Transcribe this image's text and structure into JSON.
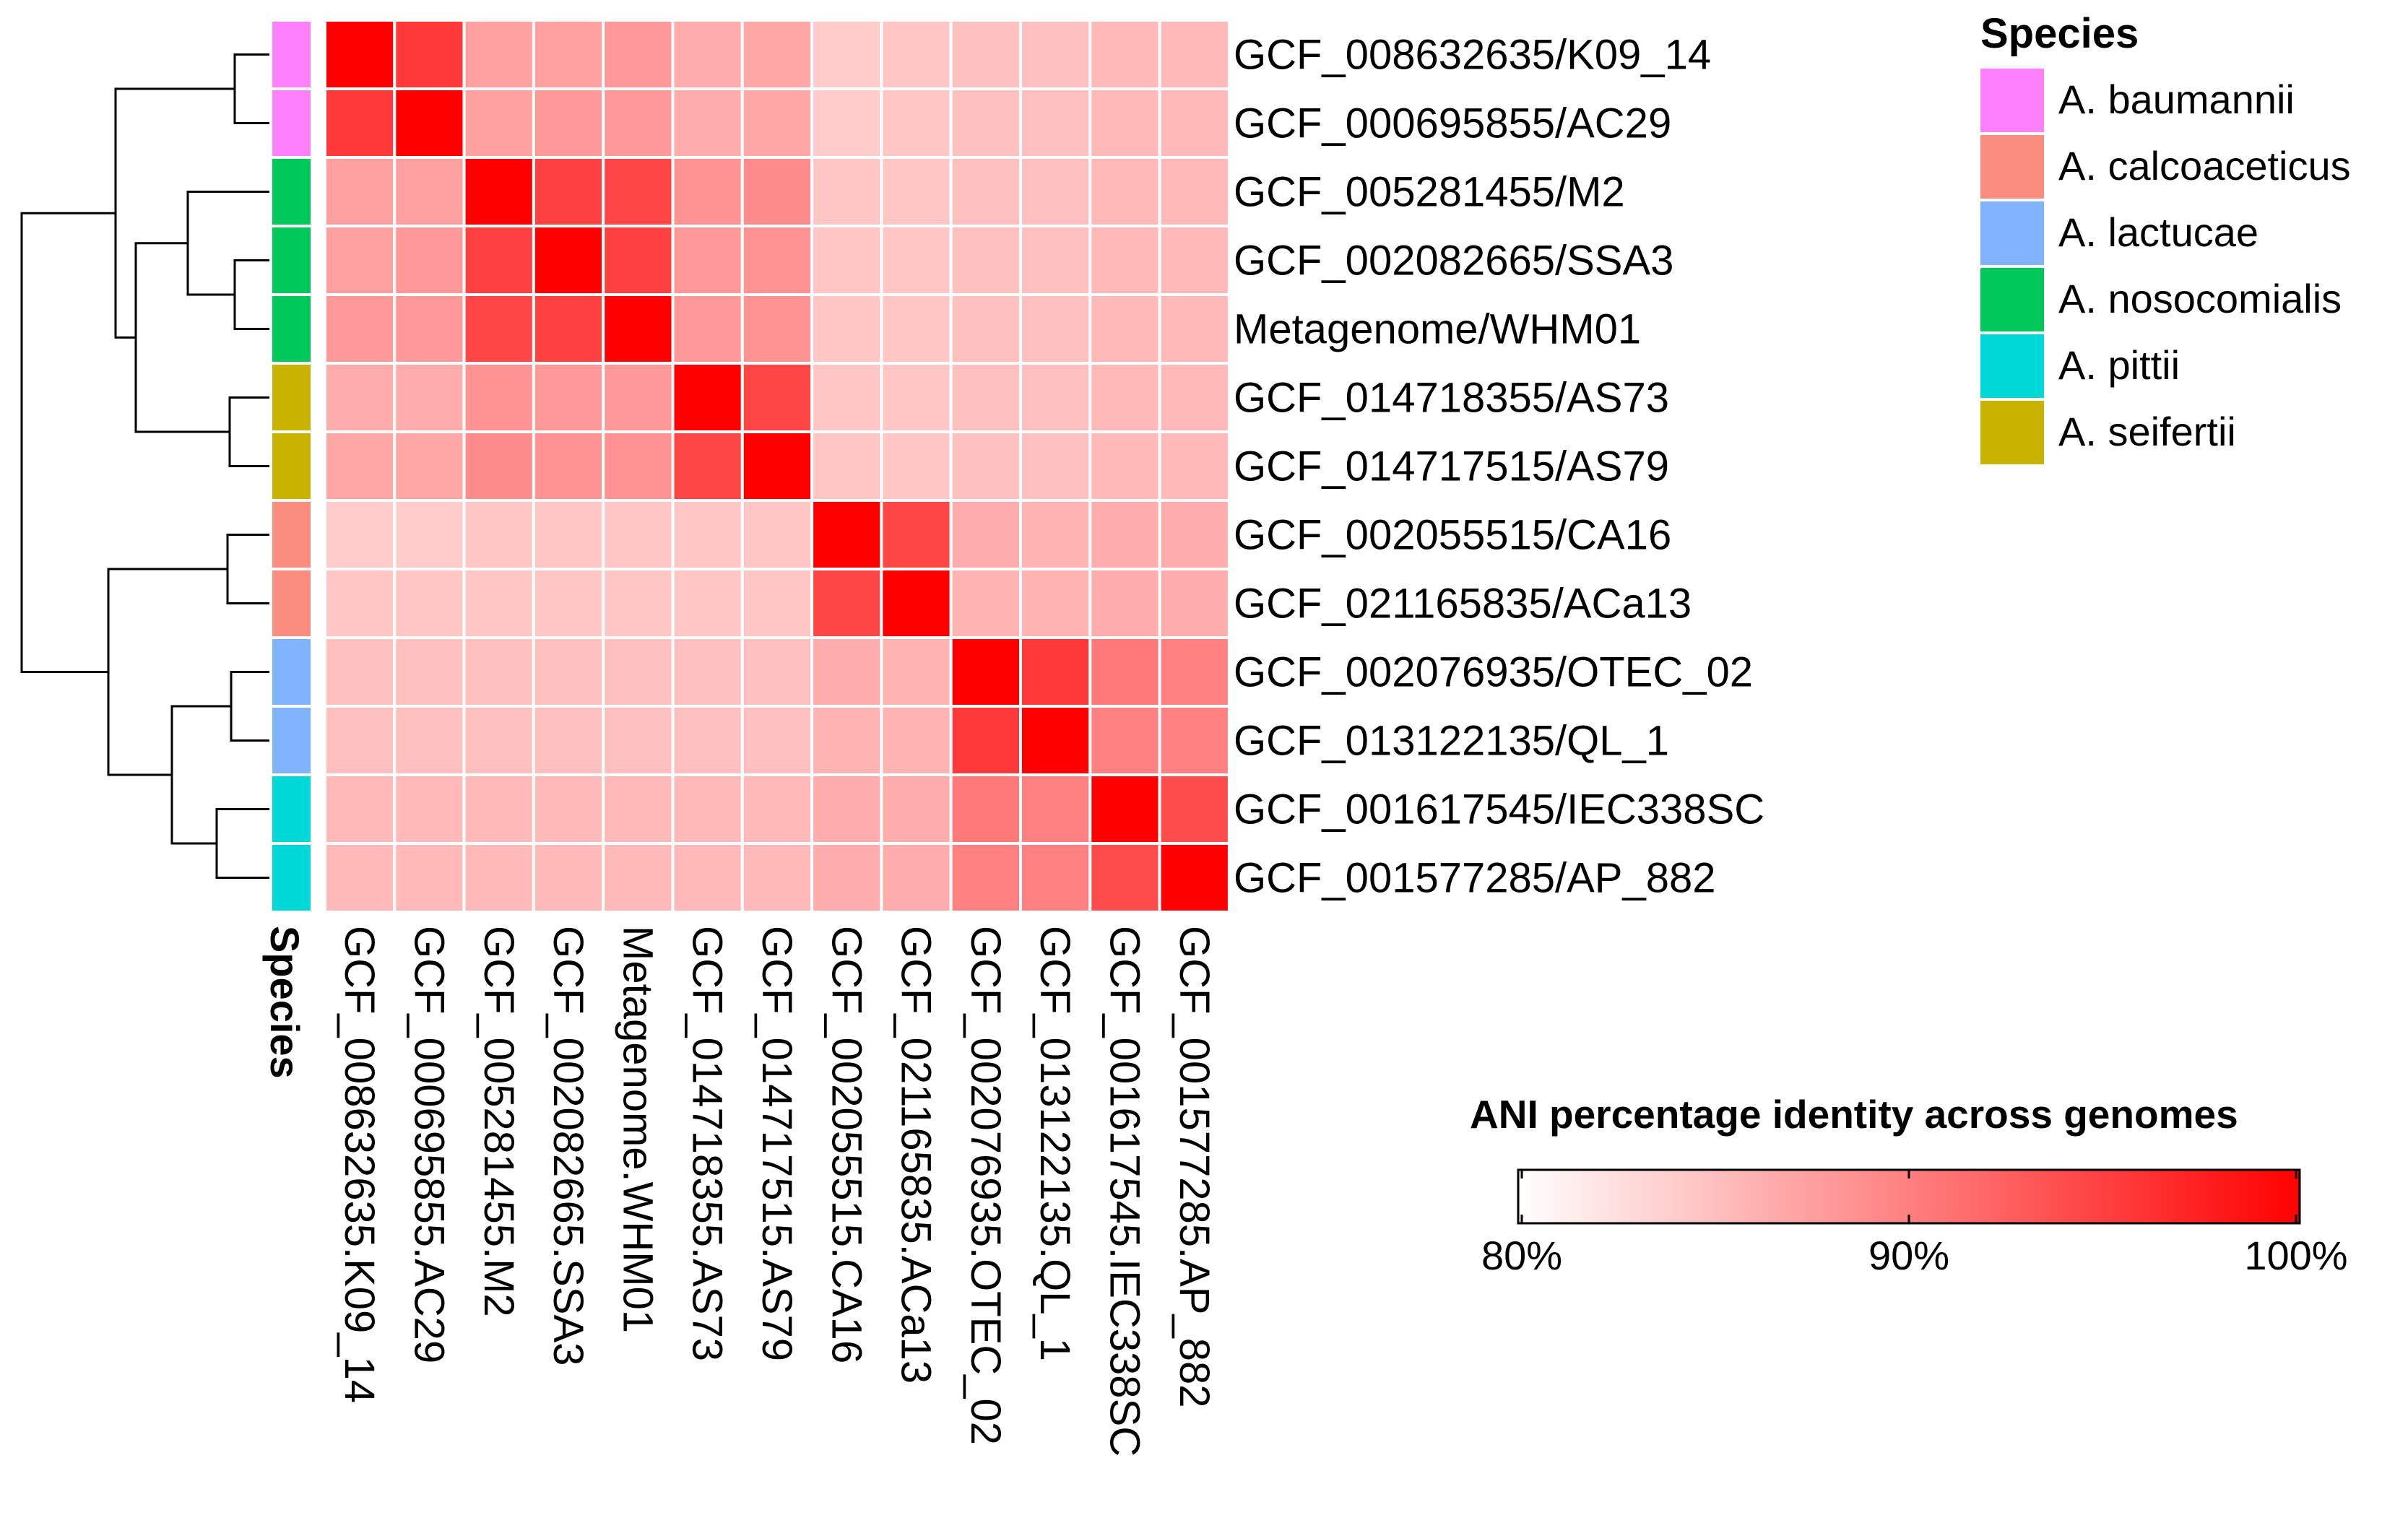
{
  "chart_data": {
    "type": "heatmap",
    "title": "",
    "row_labels": [
      "GCF_008632635/K09_14",
      "GCF_000695855/AC29",
      "GCF_005281455/M2",
      "GCF_002082665/SSA3",
      "Metagenome/WHM01",
      "GCF_014718355/AS73",
      "GCF_014717515/AS79",
      "GCF_002055515/CA16",
      "GCF_021165835/ACa13",
      "GCF_002076935/OTEC_02",
      "GCF_013122135/QL_1",
      "GCF_001617545/IEC338SC",
      "GCF_001577285/AP_882"
    ],
    "col_labels": [
      "GCF_008632635.K09_14",
      "GCF_000695855.AC29",
      "GCF_005281455.M2",
      "GCF_002082665.SSA3",
      "Metagenome.WHM01",
      "GCF_014718355.AS73",
      "GCF_014717515.AS79",
      "GCF_002055515.CA16",
      "GCF_021165835.ACa13",
      "GCF_002076935.OTEC_02",
      "GCF_013122135.QL_1",
      "GCF_001617545.IEC338SC",
      "GCF_001577285.AP_882"
    ],
    "row_species": [
      "A. baumannii",
      "A. baumannii",
      "A. nosocomialis",
      "A. nosocomialis",
      "A. nosocomialis",
      "A. seifertii",
      "A. seifertii",
      "A. calcoaceticus",
      "A. calcoaceticus",
      "A. lactucae",
      "A. lactucae",
      "A. pittii",
      "A. pittii"
    ],
    "values": [
      [
        100,
        95.5,
        87.5,
        87.5,
        88.0,
        86.5,
        87.0,
        84.0,
        84.5,
        85.0,
        85.0,
        85.5,
        85.5
      ],
      [
        95.5,
        100,
        87.5,
        88.0,
        88.0,
        86.5,
        87.0,
        84.0,
        84.5,
        85.0,
        85.0,
        85.5,
        85.5
      ],
      [
        87.5,
        87.5,
        100,
        95.0,
        94.5,
        88.5,
        89.0,
        84.5,
        84.5,
        85.0,
        85.0,
        85.5,
        85.5
      ],
      [
        87.5,
        88.0,
        95.0,
        100,
        95.0,
        88.0,
        88.5,
        84.5,
        84.5,
        85.0,
        85.0,
        85.5,
        85.5
      ],
      [
        88.0,
        88.0,
        94.5,
        95.0,
        100,
        88.0,
        88.5,
        84.5,
        84.5,
        85.0,
        85.0,
        85.5,
        85.5
      ],
      [
        86.5,
        86.5,
        88.5,
        88.0,
        88.0,
        100,
        94.5,
        84.5,
        84.5,
        85.0,
        85.0,
        85.5,
        85.5
      ],
      [
        87.0,
        87.0,
        89.0,
        88.5,
        88.5,
        94.5,
        100,
        84.5,
        84.5,
        85.0,
        85.0,
        85.5,
        85.5
      ],
      [
        84.0,
        84.0,
        84.5,
        84.5,
        84.5,
        84.5,
        84.5,
        100,
        94.5,
        86.5,
        86.0,
        86.5,
        86.5
      ],
      [
        84.5,
        84.5,
        84.5,
        84.5,
        84.5,
        84.5,
        84.5,
        94.5,
        100,
        86.0,
        86.0,
        86.5,
        86.5
      ],
      [
        85.0,
        85.0,
        85.0,
        85.0,
        85.0,
        85.0,
        85.0,
        86.5,
        86.0,
        100,
        95.5,
        90.5,
        90.0
      ],
      [
        85.0,
        85.0,
        85.0,
        85.0,
        85.0,
        85.0,
        85.0,
        86.0,
        86.0,
        95.5,
        100,
        90.0,
        90.0
      ],
      [
        85.5,
        85.5,
        85.5,
        85.5,
        85.5,
        85.5,
        85.5,
        86.5,
        86.5,
        90.5,
        90.0,
        100,
        94.0
      ],
      [
        85.5,
        85.5,
        85.5,
        85.5,
        85.5,
        85.5,
        85.5,
        86.5,
        86.5,
        90.0,
        90.0,
        94.0,
        100
      ]
    ],
    "color_scale": {
      "min": 80,
      "max": 100,
      "low_color": "#ffffff",
      "high_color": "#ff0000",
      "title": "ANI percentage identity across genomes",
      "ticks": [
        80,
        90,
        100
      ],
      "tick_labels": [
        "80%",
        "90%",
        "100%"
      ]
    },
    "annotation_title": "Species",
    "legend": {
      "title": "Species",
      "entries": [
        {
          "label": "A. baumannii",
          "color": "#ff80ff"
        },
        {
          "label": "A. calcoaceticus",
          "color": "#fa8c80"
        },
        {
          "label": "A. lactucae",
          "color": "#80b4ff"
        },
        {
          "label": "A. nosocomialis",
          "color": "#00c85a"
        },
        {
          "label": "A. pittii",
          "color": "#00d7d7"
        },
        {
          "label": "A. seifertii",
          "color": "#c8b400"
        }
      ]
    },
    "dendrogram": "hierarchical clustering on rows: ((K09_14,AC29),((M2,(SSA3,WHM01)),(AS73,AS79))),((CA16,ACa13),((OTEC_02,QL_1),(IEC338SC,AP_882)))"
  }
}
